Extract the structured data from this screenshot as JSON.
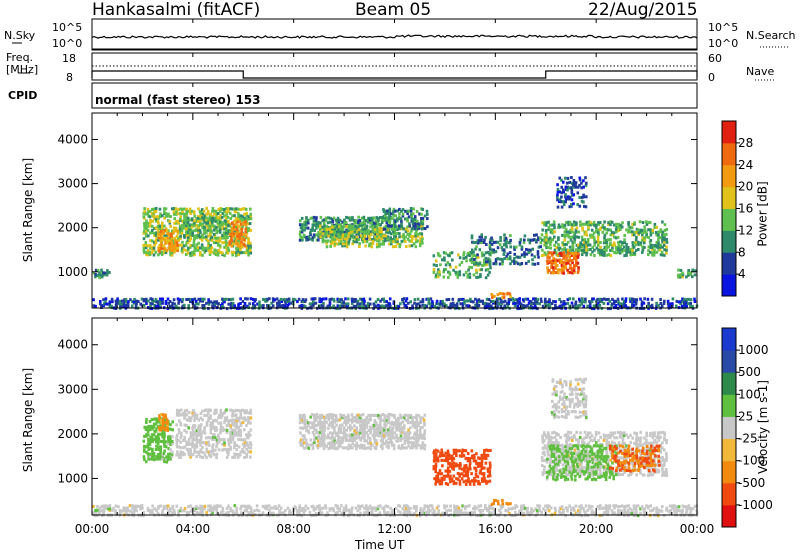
{
  "header": {
    "title": "Hankasalmi (fitACF)",
    "beam": "Beam 05",
    "date": "22/Aug/2015"
  },
  "noise_panel": {
    "left_label": "N.Sky",
    "right_label": "N.Search",
    "left_ticks": [
      "10^5",
      "10^0"
    ],
    "right_ticks": [
      "10^5",
      "10^0"
    ]
  },
  "freq_panel": {
    "left_label_1": "Freq.",
    "left_label_2": "[MHz]",
    "left_ticks": [
      "18",
      "8"
    ],
    "right_label": "Nave",
    "right_ticks": [
      "60",
      "0"
    ]
  },
  "cpid_panel": {
    "label": "CPID",
    "text": "normal (fast stereo) 153"
  },
  "colors": {
    "power": [
      "#0a14e0",
      "#1f3a9a",
      "#2e8a6a",
      "#5fbf4f",
      "#e0c21a",
      "#f29a10",
      "#f06a10",
      "#e02010"
    ],
    "velocity": [
      "#e01010",
      "#f04a10",
      "#f28a10",
      "#f2b83a",
      "#c8c8c8",
      "#5fbf3f",
      "#2e8a4a",
      "#2a4aa8",
      "#1a3ad0"
    ],
    "ground_scatter": "#c8c8c8"
  },
  "chart_data": [
    {
      "type": "heatmap",
      "name": "power",
      "ylabel": "Slant Range [km]",
      "xlim": [
        0,
        24
      ],
      "ylim": [
        180,
        4600
      ],
      "yticks": [
        "4000",
        "3000",
        "2000",
        "1000"
      ],
      "colorbar_label": "Power [dB]",
      "colorbar_ticks": [
        "28",
        "24",
        "20",
        "16",
        "12",
        "8",
        "4"
      ],
      "clim": [
        0,
        30
      ],
      "patches": [
        {
          "t0": 0.0,
          "t1": 24.0,
          "r0": 200,
          "r1": 450,
          "power": 6,
          "density": 0.55
        },
        {
          "t0": 0.0,
          "t1": 0.7,
          "r0": 900,
          "r1": 1100,
          "power": 10,
          "density": 0.6
        },
        {
          "t0": 2.0,
          "t1": 6.3,
          "r0": 1400,
          "r1": 2500,
          "power": 14,
          "density": 0.55
        },
        {
          "t0": 2.6,
          "t1": 3.4,
          "r0": 1500,
          "r1": 2000,
          "power": 20,
          "density": 0.6
        },
        {
          "t0": 5.4,
          "t1": 6.1,
          "r0": 1600,
          "r1": 2200,
          "power": 22,
          "density": 0.6
        },
        {
          "t0": 3.6,
          "t1": 5.4,
          "r0": 1800,
          "r1": 2300,
          "power": 12,
          "density": 0.5
        },
        {
          "t0": 8.2,
          "t1": 12.0,
          "r0": 1750,
          "r1": 2300,
          "power": 10,
          "density": 0.65
        },
        {
          "t0": 9.0,
          "t1": 13.1,
          "r0": 1600,
          "r1": 2100,
          "power": 14,
          "density": 0.55
        },
        {
          "t0": 11.5,
          "t1": 13.3,
          "r0": 2000,
          "r1": 2500,
          "power": 10,
          "density": 0.5
        },
        {
          "t0": 13.5,
          "t1": 15.8,
          "r0": 900,
          "r1": 1500,
          "power": 12,
          "density": 0.35
        },
        {
          "t0": 15.0,
          "t1": 17.8,
          "r0": 1200,
          "r1": 1900,
          "power": 8,
          "density": 0.35
        },
        {
          "t0": 15.8,
          "t1": 16.6,
          "r0": 450,
          "r1": 580,
          "power": 20,
          "density": 0.7
        },
        {
          "t0": 17.8,
          "t1": 22.8,
          "r0": 1400,
          "r1": 2200,
          "power": 12,
          "density": 0.5
        },
        {
          "t0": 18.0,
          "t1": 19.3,
          "r0": 1000,
          "r1": 1500,
          "power": 24,
          "density": 0.7
        },
        {
          "t0": 18.4,
          "t1": 19.6,
          "r0": 2500,
          "r1": 3200,
          "power": 6,
          "density": 0.35
        },
        {
          "t0": 23.2,
          "t1": 24.0,
          "r0": 900,
          "r1": 1100,
          "power": 12,
          "density": 0.6
        }
      ]
    },
    {
      "type": "heatmap",
      "name": "velocity",
      "xlabel": "Time UT",
      "ylabel": "Slant Range [km]",
      "xlim": [
        0,
        24
      ],
      "ylim": [
        180,
        4600
      ],
      "xticks": [
        "00:00",
        "04:00",
        "08:00",
        "12:00",
        "16:00",
        "20:00",
        "00:00"
      ],
      "yticks": [
        "4000",
        "3000",
        "2000",
        "1000"
      ],
      "colorbar_label": "Velocity [m s-1]",
      "colorbar_ticks": [
        "1000",
        "500",
        "100",
        "25",
        "-25",
        "-100",
        "-500",
        "-1000"
      ],
      "patches": [
        {
          "t0": 0.0,
          "t1": 24.0,
          "r0": 200,
          "r1": 450,
          "velocity": 0,
          "ground": true,
          "density": 0.5
        },
        {
          "t0": 2.0,
          "t1": 3.2,
          "r0": 1400,
          "r1": 2400,
          "velocity": 60,
          "density": 0.6
        },
        {
          "t0": 2.6,
          "t1": 3.0,
          "r0": 2100,
          "r1": 2500,
          "velocity": -120,
          "density": 0.6
        },
        {
          "t0": 3.3,
          "t1": 6.3,
          "r0": 1500,
          "r1": 2600,
          "velocity": 0,
          "ground": true,
          "density": 0.5
        },
        {
          "t0": 8.2,
          "t1": 13.2,
          "r0": 1700,
          "r1": 2500,
          "velocity": 0,
          "ground": true,
          "density": 0.65
        },
        {
          "t0": 13.5,
          "t1": 15.8,
          "r0": 900,
          "r1": 1700,
          "velocity": -600,
          "density": 0.5
        },
        {
          "t0": 15.8,
          "t1": 16.6,
          "r0": 450,
          "r1": 580,
          "velocity": -200,
          "density": 0.7
        },
        {
          "t0": 17.8,
          "t1": 22.8,
          "r0": 1100,
          "r1": 2100,
          "velocity": 0,
          "ground": true,
          "density": 0.55
        },
        {
          "t0": 18.0,
          "t1": 20.8,
          "r0": 1000,
          "r1": 1800,
          "velocity": 60,
          "density": 0.45
        },
        {
          "t0": 20.5,
          "t1": 22.5,
          "r0": 1200,
          "r1": 1800,
          "velocity": -500,
          "density": 0.5
        },
        {
          "t0": 18.2,
          "t1": 19.6,
          "r0": 2400,
          "r1": 3300,
          "velocity": 0,
          "ground": true,
          "density": 0.4
        }
      ]
    }
  ]
}
